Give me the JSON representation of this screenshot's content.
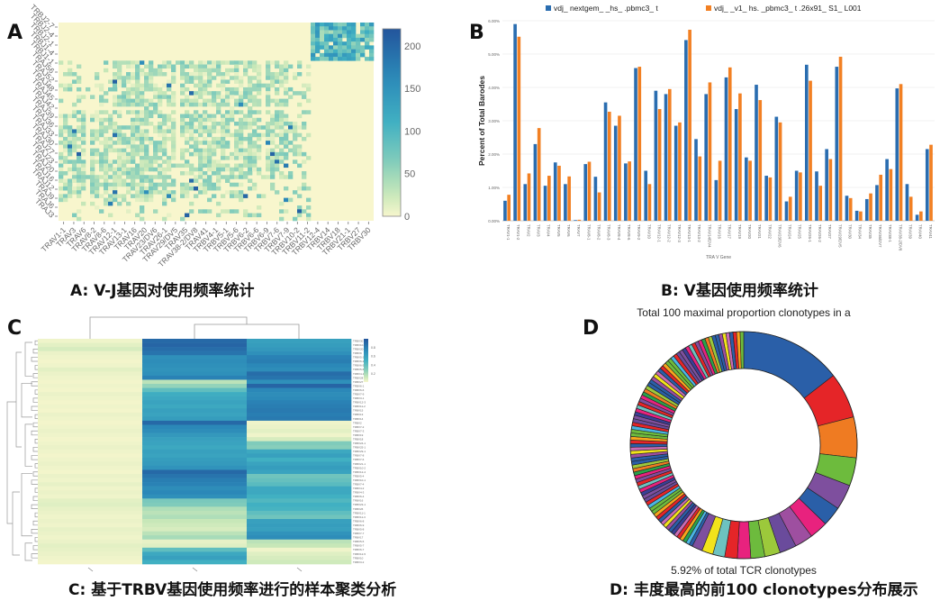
{
  "panels": {
    "A": {
      "letter": "A",
      "caption": "A: V-J基因对使用频率统计"
    },
    "B": {
      "letter": "B",
      "caption": "B: V基因使用频率统计"
    },
    "C": {
      "letter": "C",
      "caption": "C: 基于TRBV基因使用频率进行的样本聚类分析"
    },
    "D": {
      "letter": "D",
      "caption": "D: 丰度最高的前100 clonotypes分布展示"
    }
  },
  "chart_data": [
    {
      "id": "A",
      "type": "heatmap",
      "title": "",
      "y_tick_labels": [
        "TRBJ2-7",
        "TRBJ2-4",
        "TRBJ2-1",
        "TRBJ1-4",
        "TRBJ1-1",
        "TRAJ56",
        "TRAJ52",
        "TRAJ48",
        "TRAJ45",
        "TRAJ42",
        "TRAJ39",
        "TRAJ36",
        "TRAJ33",
        "TRAJ30",
        "TRAJ27",
        "TRAJ23",
        "TRAJ20",
        "TRAJ16",
        "TRAJ12",
        "TRAJ9",
        "TRAJ6",
        "TRAJ3"
      ],
      "x_tick_labels": [
        "TRAV1-1",
        "TRAV3",
        "TRAV6",
        "TRAV8-2",
        "TRAV8-6",
        "TRAV12-1",
        "TRAV13-1",
        "TRAV16",
        "TRAV20",
        "TRAV23/DV6",
        "TRAV26-1",
        "TRAV29/DV5",
        "TRAV35",
        "TRAV38-2/DV8",
        "TRAV41",
        "TRBV4-1",
        "TRBV5-1",
        "TRBV5-6",
        "TRBV6-2",
        "TRBV6-6",
        "TRBV6-9",
        "TRBV7-6",
        "TRBV7-9",
        "TRBV10-2",
        "TRBV11-2",
        "TRBV12-4",
        "TRBV14",
        "TRBV18",
        "TRBV21-1",
        "TRBV27",
        "TRBV30"
      ],
      "colorbar": {
        "min": 0,
        "max": 220,
        "ticks": [
          0,
          50,
          100,
          150,
          200
        ],
        "low_color": "#f7f6cd",
        "mid_color": "#41b0c2",
        "high_color": "#23559c"
      },
      "blocks": [
        {
          "rows": "TRBJ",
          "cols": "TRBV",
          "typical_value": 90,
          "max_value": 160
        },
        {
          "rows": "TRAJ",
          "cols": "TRAV",
          "typical_value": 35,
          "max_value": 200
        },
        {
          "rows": "TRBJ",
          "cols": "TRAV",
          "typical_value": 0
        },
        {
          "rows": "TRAJ",
          "cols": "TRBV",
          "typical_value": 0
        }
      ]
    },
    {
      "id": "B",
      "type": "bar",
      "title": "",
      "xlabel": "TRA V Gene",
      "ylabel": "Percent of Total Barodes",
      "ylim": [
        0,
        6
      ],
      "y_ticks": [
        "0.00%",
        "1.00%",
        "2.00%",
        "3.00%",
        "4.00%",
        "5.00%",
        "6.00%"
      ],
      "legend_position": "top",
      "categories": [
        "TRAV1-1",
        "TRAV1-2",
        "TRAV2",
        "TRAV3",
        "TRAV4",
        "TRAV5",
        "TRAV6",
        "TRAV7",
        "TRAV8-1",
        "TRAV8-2",
        "TRAV8-3",
        "TRAV8-4",
        "TRAV8-6",
        "TRAV9-2",
        "TRAV10",
        "TRAV12-1",
        "TRAV12-2",
        "TRAV12-3",
        "TRAV13-1",
        "TRAV13-2",
        "TRAV14/DV4",
        "TRAV16",
        "TRAV17",
        "TRAV19",
        "TRAV20",
        "TRAV21",
        "TRAV22",
        "TRAV23/DV6",
        "TRAV24",
        "TRAV25",
        "TRAV26-1",
        "TRAV26-2",
        "TRAV27",
        "TRAV29/DV5",
        "TRAV30",
        "TRAV34",
        "TRAV35",
        "TRAV36/DV7",
        "TRAV38-1",
        "TRAV38-2/DV8",
        "TRAV39",
        "TRAV40",
        "TRAV41"
      ],
      "series": [
        {
          "name": "vdj_ nextgem_ _hs_ .pbmc3_ t",
          "color": "#2a6db0",
          "values": [
            0.6,
            5.9,
            1.1,
            2.3,
            1.05,
            1.75,
            1.1,
            0.02,
            1.7,
            1.32,
            3.55,
            2.85,
            1.72,
            4.58,
            1.5,
            3.9,
            3.8,
            2.85,
            5.42,
            2.45,
            3.8,
            1.22,
            4.3,
            3.35,
            1.9,
            4.08,
            1.35,
            3.12,
            0.58,
            1.5,
            4.68,
            1.48,
            2.15,
            4.62,
            0.75,
            0.3,
            0.65,
            1.07,
            1.85,
            3.97,
            1.1,
            0.18,
            2.15
          ]
        },
        {
          "name": "vdj_ _v1_ hs. _pbmc3_ t .26x91_ S1_ L001",
          "color": "#f28023",
          "values": [
            0.78,
            5.52,
            1.42,
            2.78,
            1.35,
            1.65,
            1.33,
            0.03,
            1.77,
            0.85,
            3.27,
            3.15,
            1.78,
            4.62,
            1.1,
            3.35,
            3.95,
            2.95,
            5.73,
            1.93,
            4.15,
            1.8,
            4.6,
            3.82,
            1.8,
            3.62,
            1.3,
            2.95,
            0.72,
            1.45,
            4.2,
            1.05,
            1.85,
            4.92,
            0.68,
            0.28,
            0.82,
            1.38,
            1.55,
            4.1,
            0.72,
            0.28,
            2.28
          ]
        }
      ]
    },
    {
      "id": "C",
      "type": "heatmap",
      "title": "",
      "columns": 3,
      "column_tick_labels": [
        "—",
        "—",
        "—"
      ],
      "colorbar": {
        "ticks": [
          "0.2",
          "0.4",
          "0.6",
          "0.8"
        ],
        "low_color": "#f7f6cd",
        "high_color": "#23559c"
      },
      "row_dendrogram": true,
      "column_dendrogram": true,
      "rows": [
        [
          0.02,
          0.9,
          0.6
        ],
        [
          0.05,
          0.92,
          0.62
        ],
        [
          0.08,
          0.88,
          0.65
        ],
        [
          0.03,
          0.85,
          0.7
        ],
        [
          0.02,
          0.7,
          0.78
        ],
        [
          0.01,
          0.72,
          0.8
        ],
        [
          0.02,
          0.7,
          0.75
        ],
        [
          0.05,
          0.68,
          0.72
        ],
        [
          0.03,
          0.7,
          0.88
        ],
        [
          0.02,
          0.78,
          0.85
        ],
        [
          0.01,
          0.15,
          0.7
        ],
        [
          0.02,
          0.25,
          0.92
        ],
        [
          0.01,
          0.4,
          0.75
        ],
        [
          0.03,
          0.52,
          0.72
        ],
        [
          0.02,
          0.55,
          0.74
        ],
        [
          0.01,
          0.58,
          0.78
        ],
        [
          0.02,
          0.55,
          0.8
        ],
        [
          0.01,
          0.6,
          0.82
        ],
        [
          0.03,
          0.58,
          0.8
        ],
        [
          0.02,
          0.62,
          0.82
        ],
        [
          0.01,
          0.9,
          0.02
        ],
        [
          0.02,
          0.75,
          0.03
        ],
        [
          0.03,
          0.72,
          0.05
        ],
        [
          0.02,
          0.65,
          0.02
        ],
        [
          0.01,
          0.6,
          0.08
        ],
        [
          0.02,
          0.58,
          0.3
        ],
        [
          0.03,
          0.55,
          0.28
        ],
        [
          0.02,
          0.6,
          0.55
        ],
        [
          0.01,
          0.58,
          0.6
        ],
        [
          0.02,
          0.62,
          0.5
        ],
        [
          0.03,
          0.64,
          0.58
        ],
        [
          0.02,
          0.68,
          0.62
        ],
        [
          0.01,
          0.9,
          0.58
        ],
        [
          0.03,
          0.85,
          0.35
        ],
        [
          0.02,
          0.8,
          0.38
        ],
        [
          0.04,
          0.78,
          0.42
        ],
        [
          0.02,
          0.72,
          0.55
        ],
        [
          0.03,
          0.75,
          0.55
        ],
        [
          0.02,
          0.7,
          0.5
        ],
        [
          0.05,
          0.32,
          0.45
        ],
        [
          0.06,
          0.3,
          0.5
        ],
        [
          0.04,
          0.18,
          0.48
        ],
        [
          0.03,
          0.15,
          0.4
        ],
        [
          0.02,
          0.18,
          0.35
        ],
        [
          0.03,
          0.12,
          0.6
        ],
        [
          0.02,
          0.1,
          0.62
        ],
        [
          0.04,
          0.08,
          0.6
        ],
        [
          0.03,
          0.15,
          0.68
        ],
        [
          0.02,
          0.2,
          0.72
        ],
        [
          0.03,
          0.04,
          0.15
        ],
        [
          0.05,
          0.06,
          0.12
        ],
        [
          0.04,
          0.4,
          0.02
        ],
        [
          0.03,
          0.55,
          0.06
        ],
        [
          0.02,
          0.6,
          0.08
        ],
        [
          0.01,
          0.5,
          0.1
        ]
      ],
      "row_labels": [
        "TRBV30",
        "TRBV10-3",
        "TRBV20-1",
        "TRBV9",
        "TRBV5-1",
        "TRBV6-2",
        "TRBV6-5",
        "TRBV5-6",
        "TRBV4-1",
        "TRBV28",
        "TRBV27",
        "TRBV6-1",
        "TRBV6-6",
        "TRBV7-9",
        "TRBV3-1",
        "TRBV12-3",
        "TRBV11-2",
        "TRBV15",
        "TRBV13",
        "TRBV14",
        "TRBV2",
        "TRBV7-2",
        "TRBV7-3",
        "TRBV19",
        "TRBV18",
        "TRBV24-1",
        "TRBV25-1",
        "TRBV29-1",
        "TRBV7-8",
        "TRBV7-6",
        "TRBV21-1",
        "TRBV10-2",
        "TRBV12-4",
        "TRBV5-4",
        "TRBV10-1",
        "TRBV7-4",
        "TRBV4-2",
        "TRBV4-3",
        "TRBV6-4",
        "TRBV16",
        "TRBV23-1",
        "TRBV26",
        "TRBV11-1",
        "TRBV11-3",
        "TRBV6-8",
        "TRBV6-9",
        "TRBV5-8",
        "TRBV7-7",
        "TRBV17",
        "TRBV5-5",
        "TRBV5-7",
        "TRBV6-7",
        "TRBV12-5",
        "TRBV10",
        "TRBV3-2"
      ]
    },
    {
      "id": "D",
      "type": "pie",
      "title": "Total 100 maximal proportion clonotypes in  a",
      "center_annotation": "5.92% of total TCR clonotypes",
      "donut": true,
      "slices_count": 100,
      "top_slices_percent_of_top100": [
        14.5,
        6.5,
        5.8,
        4.0,
        3.6,
        2.8,
        2.6,
        2.6,
        2.4,
        2.2,
        2.0,
        1.9,
        1.8,
        1.7,
        1.6,
        1.5
      ],
      "remaining_slices": 84,
      "palette": [
        "#2a5fa8",
        "#e52528",
        "#ef7b22",
        "#6dbb3d",
        "#7e4f9e",
        "#2a5fa8",
        "#e8227e",
        "#9e4fa0",
        "#6a4b9c",
        "#9cc93b",
        "#6dbb3d",
        "#e8227e",
        "#e52528",
        "#6dc2c0",
        "#f2e31b",
        "#7e4f9e",
        "#2a5fa8",
        "#4ab5e4",
        "#2aa24a",
        "#f7a51c",
        "#e52528",
        "#c96bb5",
        "#3a3f98"
      ]
    }
  ]
}
